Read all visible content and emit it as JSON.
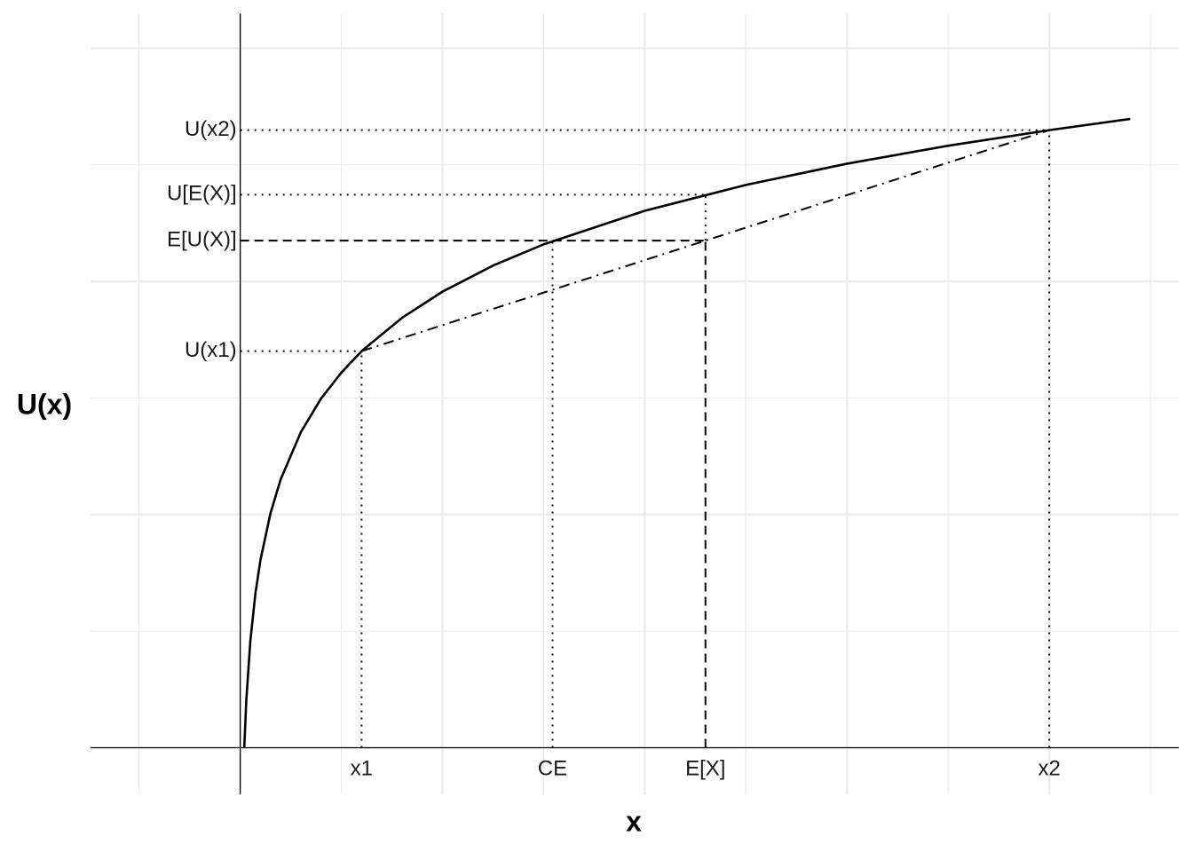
{
  "chart_data": {
    "type": "line",
    "x_label": "x",
    "y_label": "U(x)",
    "x": [
      0.02,
      0.03,
      0.05,
      0.075,
      0.1,
      0.15,
      0.2,
      0.3,
      0.4,
      0.5,
      0.6,
      0.8,
      1,
      1.25,
      1.5,
      2,
      2.5,
      3,
      3.5,
      4,
      4.4
    ],
    "series": [
      {
        "color": "#000000",
        "values": [
          0,
          0.203,
          0.458,
          0.661,
          0.805,
          1.007,
          1.151,
          1.354,
          1.498,
          1.609,
          1.701,
          1.844,
          1.956,
          2.068,
          2.159,
          2.303,
          2.414,
          2.505,
          2.582,
          2.649,
          2.697
        ]
      }
    ],
    "xlim": [
      -0.74,
      4.64
    ],
    "ylim": [
      -0.2,
      3.15
    ],
    "xticks": [
      {
        "value": 0.6,
        "label": "x1"
      },
      {
        "value": 1.544,
        "label": "CE"
      },
      {
        "value": 2.3,
        "label": "E[X]"
      },
      {
        "value": 4,
        "label": "x2"
      }
    ],
    "yticks": [
      {
        "value": 1.701,
        "label": "U(x1)"
      },
      {
        "value": 2.175,
        "label": "E[U(X)]"
      },
      {
        "value": 2.372,
        "label": "U[E(X)]"
      },
      {
        "value": 2.649,
        "label": "U(x2)"
      }
    ],
    "x_gridlines": [
      -0.5,
      0,
      0.5,
      1,
      1.5,
      2,
      2.5,
      3,
      3.5,
      4,
      4.5
    ],
    "y_gridlines": [
      0,
      0.5,
      1,
      1.5,
      2,
      2.5,
      3
    ],
    "grid": true
  }
}
